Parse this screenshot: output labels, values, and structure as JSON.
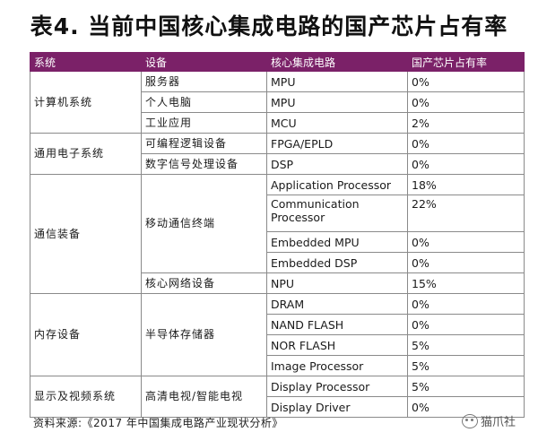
{
  "title": "表4. 当前中国核心集成电路的国产芯片占有率",
  "table": {
    "headers": [
      "系统",
      "设备",
      "核心集成电路",
      "国产芯片占有率"
    ],
    "groups": [
      {
        "system": "计算机系统",
        "rows": [
          {
            "device": "服务器",
            "ic": "MPU",
            "share": "0%"
          },
          {
            "device": "个人电脑",
            "ic": "MPU",
            "share": "0%"
          },
          {
            "device": "工业应用",
            "ic": "MCU",
            "share": "2%"
          }
        ]
      },
      {
        "system": "通用电子系统",
        "rows": [
          {
            "device": "可编程逻辑设备",
            "ic": "FPGA/EPLD",
            "share": "0%"
          },
          {
            "device": "数字信号处理设备",
            "ic": "DSP",
            "share": "0%"
          }
        ]
      },
      {
        "system": "通信装备",
        "device_mobile": "移动通信终端",
        "rows": [
          {
            "ic": "Application Processor",
            "share": "18%"
          },
          {
            "ic": "Communication Processor",
            "share": "22%"
          },
          {
            "ic": "Embedded MPU",
            "share": "0%"
          },
          {
            "ic": "Embedded DSP",
            "share": "0%"
          }
        ],
        "core_network": {
          "device": "核心网络设备",
          "ic": "NPU",
          "share": "15%"
        }
      },
      {
        "system": "内存设备",
        "device": "半导体存储器",
        "rows": [
          {
            "ic": "DRAM",
            "share": "0%"
          },
          {
            "ic": "NAND FLASH",
            "share": "0%"
          },
          {
            "ic": "NOR FLASH",
            "share": "5%"
          },
          {
            "ic": "Image Processor",
            "share": "5%"
          }
        ]
      },
      {
        "system": "显示及视频系统",
        "device": "高清电视/智能电视",
        "rows": [
          {
            "ic": "Display Processor",
            "share": "5%"
          },
          {
            "ic": "Display Driver",
            "share": "0%"
          }
        ]
      }
    ]
  },
  "footer": "资料来源:《2017 年中国集成电路产业现状分析》",
  "watermark": "猫爪社",
  "colors": {
    "header_bg": "#7b2168",
    "header_text": "#ffffff"
  }
}
